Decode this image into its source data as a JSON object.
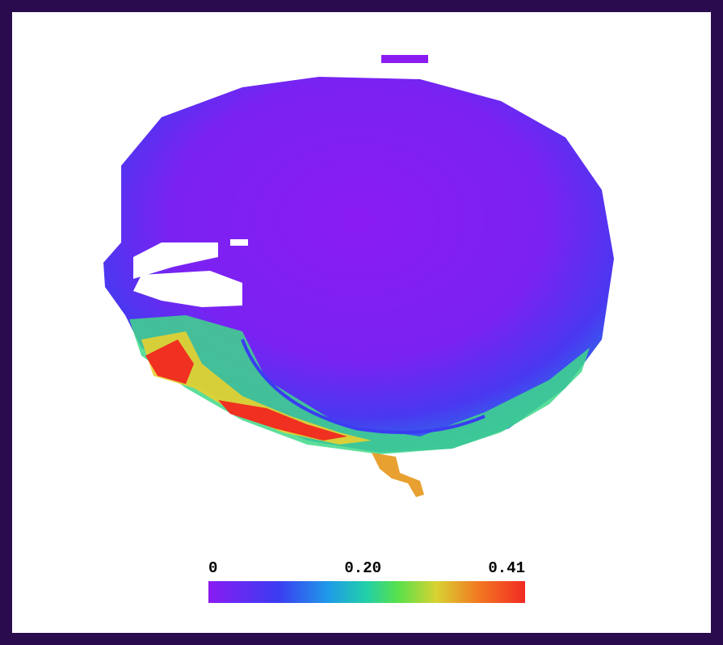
{
  "colorbar": {
    "range": [
      0,
      0.41
    ],
    "ticks": [
      0,
      {
        "value": 0.2,
        "label": "0.20"
      },
      0.41
    ]
  }
}
